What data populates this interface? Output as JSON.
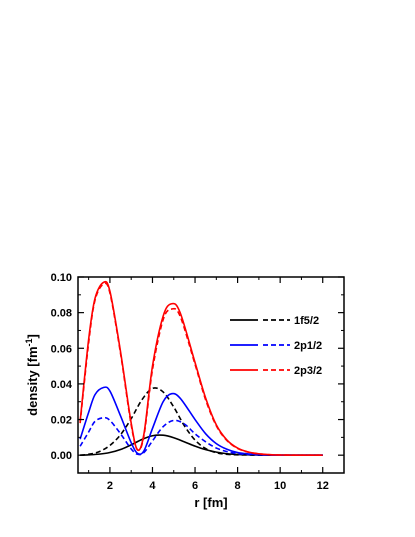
{
  "chart_data": {
    "type": "line",
    "xlabel": "r [fm]",
    "ylabel_main": "density [fm",
    "ylabel_exp": "-1",
    "ylabel_close": "]",
    "xlim": [
      0.5,
      13
    ],
    "ylim": [
      -0.01,
      0.1
    ],
    "xticks": [
      2,
      4,
      6,
      8,
      10,
      12
    ],
    "yticks": [
      0.0,
      0.02,
      0.04,
      0.06,
      0.08,
      0.1
    ],
    "ytick_labels": [
      "0.00",
      "0.02",
      "0.04",
      "0.06",
      "0.08",
      "0.10"
    ],
    "grid": false,
    "legend_position": "right",
    "colors": {
      "1f5/2": "#000000",
      "2p1/2": "#0000ff",
      "2p3/2": "#ff0000"
    },
    "series": [
      {
        "name": "1f5/2",
        "color": "#000000",
        "style": "solid",
        "x": [
          0.6,
          1,
          1.5,
          2,
          2.5,
          3,
          3.5,
          4,
          4.5,
          5,
          5.5,
          6,
          6.5,
          7,
          7.5,
          8,
          8.5,
          9,
          9.5,
          10,
          10.5,
          11,
          12
        ],
        "y": [
          0.0,
          0.0002,
          0.0006,
          0.0015,
          0.0032,
          0.0058,
          0.0088,
          0.0109,
          0.0112,
          0.0098,
          0.0075,
          0.0051,
          0.0031,
          0.0017,
          0.0008,
          0.0004,
          0.0002,
          0.0001,
          0.0,
          0.0,
          0.0,
          0.0,
          0.0
        ]
      },
      {
        "name": "1f5/2",
        "color": "#000000",
        "style": "dashed",
        "x": [
          0.6,
          1,
          1.5,
          2,
          2.5,
          3,
          3.5,
          4,
          4.5,
          5,
          5.5,
          6,
          6.5,
          7,
          7.5,
          8,
          8.5,
          9,
          9.5,
          10,
          10.5,
          11,
          12
        ],
        "y": [
          0.0,
          0.0005,
          0.002,
          0.0055,
          0.0115,
          0.0205,
          0.031,
          0.0375,
          0.0355,
          0.027,
          0.0165,
          0.0085,
          0.0037,
          0.0014,
          0.0005,
          0.0002,
          0.0001,
          0.0,
          0.0,
          0.0,
          0.0,
          0.0,
          0.0
        ]
      },
      {
        "name": "2p1/2",
        "color": "#0000ff",
        "style": "solid",
        "x": [
          0.6,
          1,
          1.3,
          1.7,
          2,
          2.5,
          3,
          3.3,
          3.6,
          4,
          4.5,
          4.9,
          5.3,
          6,
          6.5,
          7,
          7.5,
          8,
          8.5,
          9,
          9.5,
          10,
          11,
          12
        ],
        "y": [
          0.009,
          0.024,
          0.034,
          0.038,
          0.036,
          0.022,
          0.007,
          0.001,
          0.0025,
          0.015,
          0.03,
          0.0345,
          0.032,
          0.02,
          0.012,
          0.0065,
          0.0033,
          0.0015,
          0.0007,
          0.0003,
          0.0001,
          0.0,
          0.0,
          0.0
        ]
      },
      {
        "name": "2p1/2",
        "color": "#0000ff",
        "style": "dashed",
        "x": [
          0.6,
          1,
          1.3,
          1.7,
          2,
          2.5,
          3,
          3.3,
          3.6,
          4,
          4.5,
          5,
          5.5,
          6,
          6.5,
          7,
          7.5,
          8,
          8.5,
          9,
          9.5,
          10,
          11,
          12
        ],
        "y": [
          0.005,
          0.013,
          0.019,
          0.021,
          0.0195,
          0.012,
          0.0035,
          0.0005,
          0.0015,
          0.008,
          0.016,
          0.0195,
          0.0175,
          0.012,
          0.0075,
          0.004,
          0.002,
          0.0009,
          0.0004,
          0.0002,
          0.0001,
          0.0,
          0.0,
          0.0
        ]
      },
      {
        "name": "2p3/2",
        "color": "#ff0000",
        "style": "solid",
        "x": [
          0.6,
          1,
          1.3,
          1.7,
          2,
          2.5,
          3,
          3.3,
          3.6,
          4,
          4.5,
          4.9,
          5.3,
          6,
          6.5,
          7,
          7.5,
          8,
          8.5,
          9,
          9.5,
          10,
          11,
          12
        ],
        "y": [
          0.019,
          0.065,
          0.088,
          0.097,
          0.092,
          0.058,
          0.018,
          0.003,
          0.012,
          0.05,
          0.078,
          0.085,
          0.08,
          0.052,
          0.032,
          0.017,
          0.0085,
          0.004,
          0.0018,
          0.0008,
          0.0003,
          0.0001,
          0.0,
          0.0
        ]
      },
      {
        "name": "2p3/2",
        "color": "#ff0000",
        "style": "dashed",
        "x": [
          0.6,
          1,
          1.3,
          1.7,
          2,
          2.5,
          3,
          3.3,
          3.6,
          4,
          4.5,
          4.9,
          5.3,
          6,
          6.5,
          7,
          7.5,
          8,
          8.5,
          9,
          9.5,
          10,
          11,
          12
        ],
        "y": [
          0.018,
          0.063,
          0.087,
          0.096,
          0.091,
          0.057,
          0.017,
          0.003,
          0.011,
          0.048,
          0.076,
          0.082,
          0.078,
          0.051,
          0.031,
          0.0165,
          0.0082,
          0.0038,
          0.0017,
          0.0007,
          0.0003,
          0.0001,
          0.0,
          0.0
        ]
      }
    ],
    "legend": [
      {
        "label": "1f5/2",
        "color": "#000000"
      },
      {
        "label": "2p1/2",
        "color": "#0000ff"
      },
      {
        "label": "2p3/2",
        "color": "#ff0000"
      }
    ]
  }
}
